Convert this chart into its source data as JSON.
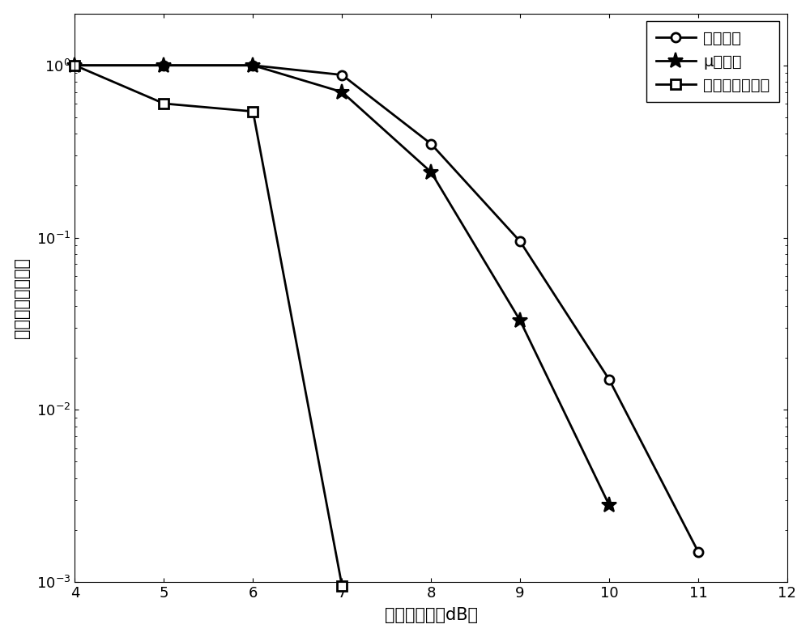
{
  "series": [
    {
      "label": "原始信号",
      "x": [
        4,
        5,
        6,
        7,
        8,
        9,
        10,
        11
      ],
      "y": [
        1.0,
        1.0,
        1.0,
        0.88,
        0.35,
        0.095,
        0.015,
        0.0015
      ],
      "marker": "o",
      "color": "#000000",
      "linewidth": 2.0,
      "markersize": 8
    },
    {
      "label": "μ率压扩",
      "x": [
        4,
        5,
        6,
        7,
        8,
        9,
        10
      ],
      "y": [
        1.0,
        1.0,
        1.0,
        0.7,
        0.24,
        0.033,
        0.0028
      ],
      "marker": "*",
      "color": "#000000",
      "linewidth": 2.0,
      "markersize": 14
    },
    {
      "label": "反余切正切压扩",
      "x": [
        4,
        5,
        6,
        7
      ],
      "y": [
        1.0,
        0.6,
        0.54,
        0.00095
      ],
      "marker": "s",
      "color": "#000000",
      "linewidth": 2.0,
      "markersize": 8
    }
  ],
  "xlim": [
    4,
    12
  ],
  "ylim_log": [
    0.001,
    2.0
  ],
  "xticks": [
    4,
    5,
    6,
    7,
    8,
    9,
    10,
    11,
    12
  ],
  "xlabel": "峰均功率比（dB）",
  "ylabel": "互补累积分布函数",
  "legend_loc": "upper right",
  "background_color": "#ffffff",
  "axis_fontsize": 15,
  "tick_fontsize": 13,
  "legend_fontsize": 14
}
